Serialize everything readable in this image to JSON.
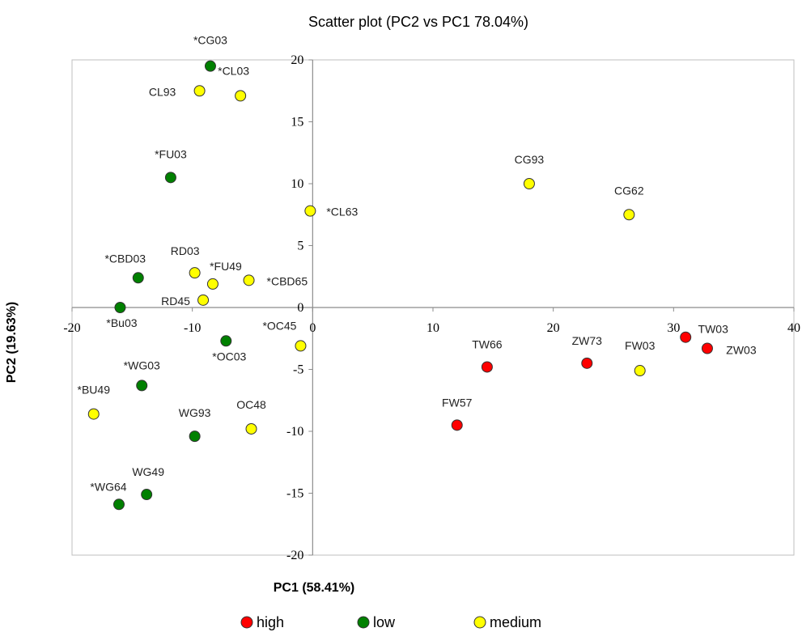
{
  "chart_data": {
    "type": "scatter",
    "title": "Scatter plot (PC2 vs PC1 78.04%)",
    "xlabel": "PC1 (58.41%)",
    "ylabel": "PC2 (19.63%)",
    "xlim": [
      -20,
      40
    ],
    "ylim": [
      -20,
      20
    ],
    "x_ticks": [
      -20,
      -10,
      0,
      10,
      20,
      30,
      40
    ],
    "y_ticks": [
      -20,
      -15,
      -10,
      -5,
      0,
      5,
      10,
      15,
      20
    ],
    "x_tick_labels": [
      "-20",
      "-10",
      "0",
      "10",
      "20",
      "30",
      "40"
    ],
    "y_tick_labels": [
      "-20",
      "-15",
      "-10",
      "-5",
      "0",
      "5",
      "10",
      "15",
      "20"
    ],
    "grid": false,
    "legend_position": "bottom",
    "series": [
      {
        "name": "high",
        "color": "#ff0000",
        "points": [
          {
            "label": "TW66",
            "x": 14.5,
            "y": -4.8
          },
          {
            "label": "FW57",
            "x": 12.0,
            "y": -9.5
          },
          {
            "label": "ZW73",
            "x": 22.8,
            "y": -4.5
          },
          {
            "label": "TW03",
            "x": 31.0,
            "y": -2.4
          },
          {
            "label": "ZW03",
            "x": 32.8,
            "y": -3.3
          }
        ]
      },
      {
        "name": "low",
        "color": "#008000",
        "points": [
          {
            "label": "*CG03",
            "x": -8.5,
            "y": 19.5
          },
          {
            "label": "*FU03",
            "x": -11.8,
            "y": 10.5
          },
          {
            "label": "*CBD03",
            "x": -14.5,
            "y": 2.4
          },
          {
            "label": "*Bu03",
            "x": -16.0,
            "y": 0.0
          },
          {
            "label": "*OC03",
            "x": -7.2,
            "y": -2.7
          },
          {
            "label": "*WG03",
            "x": -14.2,
            "y": -6.3
          },
          {
            "label": "WG93",
            "x": -9.8,
            "y": -10.4
          },
          {
            "label": "WG49",
            "x": -13.8,
            "y": -15.1
          },
          {
            "label": "*WG64",
            "x": -16.1,
            "y": -15.9
          }
        ]
      },
      {
        "name": "medium",
        "color": "#ffff00",
        "points": [
          {
            "label": "*CL03",
            "x": -6.0,
            "y": 17.1
          },
          {
            "label": "CL93",
            "x": -9.4,
            "y": 17.5
          },
          {
            "label": "*CL63",
            "x": -0.2,
            "y": 7.8
          },
          {
            "label": "RD03",
            "x": -9.8,
            "y": 2.8
          },
          {
            "label": "*FU49",
            "x": -8.3,
            "y": 1.9
          },
          {
            "label": "*CBD65",
            "x": -5.3,
            "y": 2.2
          },
          {
            "label": "RD45",
            "x": -9.1,
            "y": 0.6
          },
          {
            "label": "*OC45",
            "x": -1.0,
            "y": -3.1
          },
          {
            "label": "*BU49",
            "x": -18.2,
            "y": -8.6
          },
          {
            "label": "OC48",
            "x": -5.1,
            "y": -9.8
          },
          {
            "label": "CG93",
            "x": 18.0,
            "y": 10.0
          },
          {
            "label": "CG62",
            "x": 26.3,
            "y": 7.5
          },
          {
            "label": "FW03",
            "x": 27.2,
            "y": -5.1
          }
        ]
      }
    ]
  }
}
